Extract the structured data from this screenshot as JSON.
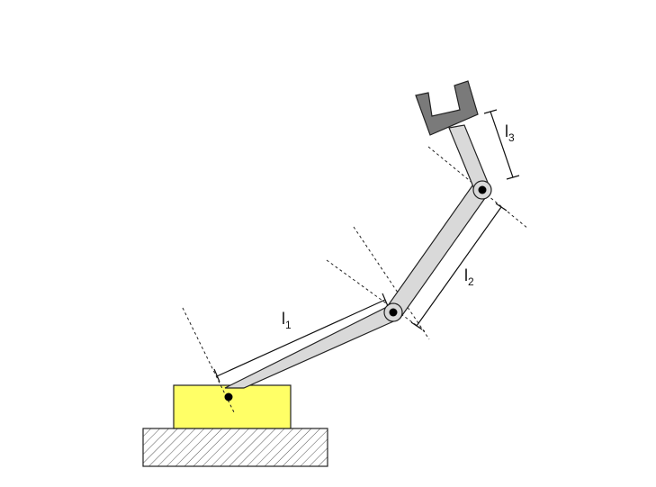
{
  "diagram": {
    "labels": [
      {
        "id": "l1",
        "base": "l",
        "sub": "1"
      },
      {
        "id": "l2",
        "base": "l",
        "sub": "2"
      },
      {
        "id": "l3",
        "base": "l",
        "sub": "3"
      }
    ],
    "colors": {
      "base_block": "#ffff66",
      "link": "#d9d9d9",
      "gripper": "#7a7a7a",
      "outline": "#222222",
      "hatch": "#555555",
      "joint": "#000000"
    }
  }
}
